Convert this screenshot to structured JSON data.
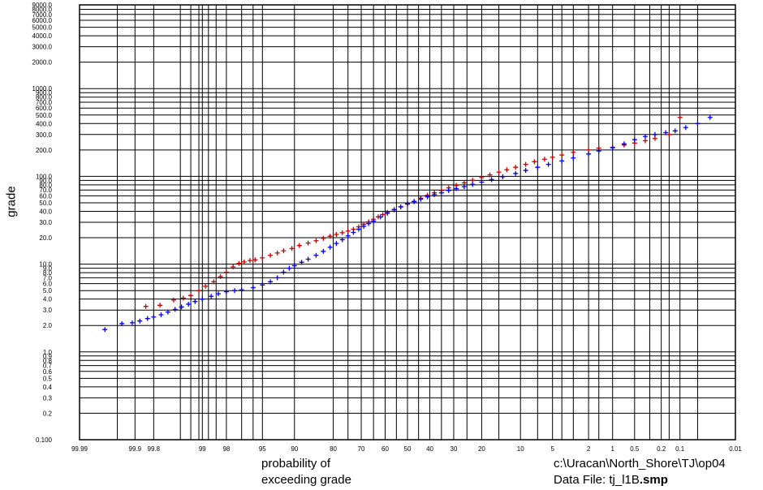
{
  "chart_data": {
    "type": "scatter",
    "xlabel_lines": [
      "probability of",
      "exceeding grade"
    ],
    "ylabel": "grade",
    "x_axis_scale": "normal probability (percent exceeding)",
    "y_axis_scale": "log",
    "x_ticks": [
      {
        "v": 99.99,
        "label": "99.99"
      },
      {
        "v": 99.9,
        "label": "99.9"
      },
      {
        "v": 99.8,
        "label": "99.8"
      },
      {
        "v": 99,
        "label": "99"
      },
      {
        "v": 98,
        "label": "98"
      },
      {
        "v": 95,
        "label": "95"
      },
      {
        "v": 90,
        "label": "90"
      },
      {
        "v": 80,
        "label": "80"
      },
      {
        "v": 70,
        "label": "70"
      },
      {
        "v": 60,
        "label": "60"
      },
      {
        "v": 50,
        "label": "50"
      },
      {
        "v": 40,
        "label": "40"
      },
      {
        "v": 30,
        "label": "30"
      },
      {
        "v": 20,
        "label": "20"
      },
      {
        "v": 10,
        "label": "10"
      },
      {
        "v": 5,
        "label": "5"
      },
      {
        "v": 2,
        "label": "2"
      },
      {
        "v": 1,
        "label": "1"
      },
      {
        "v": 0.5,
        "label": "0.5"
      },
      {
        "v": 0.2,
        "label": "0.2"
      },
      {
        "v": 0.1,
        "label": "0.1"
      },
      {
        "v": 0.01,
        "label": "0.01"
      }
    ],
    "x_minor_grid": [
      99.95,
      99.5,
      99.3,
      99.1,
      98.8,
      98.5,
      97,
      96,
      75,
      65,
      55,
      45,
      35,
      25,
      15,
      7,
      4,
      3,
      1.5,
      0.3,
      0.15,
      0.05
    ],
    "y_ticks": [
      {
        "v": 0.1,
        "label": "0.100"
      },
      {
        "v": 0.2,
        "label": "0.2"
      },
      {
        "v": 0.3,
        "label": "0.3"
      },
      {
        "v": 0.4,
        "label": "0.4"
      },
      {
        "v": 0.5,
        "label": "0.5"
      },
      {
        "v": 0.6,
        "label": "0.6"
      },
      {
        "v": 0.7,
        "label": "0.7"
      },
      {
        "v": 0.8,
        "label": "0.8"
      },
      {
        "v": 0.9,
        "label": "0.9"
      },
      {
        "v": 1,
        "label": "1.0"
      },
      {
        "v": 2,
        "label": "2.0"
      },
      {
        "v": 3,
        "label": "3.0"
      },
      {
        "v": 4,
        "label": "4.0"
      },
      {
        "v": 5,
        "label": "5.0"
      },
      {
        "v": 6,
        "label": "6.0"
      },
      {
        "v": 7,
        "label": "7.0"
      },
      {
        "v": 8,
        "label": "8.0"
      },
      {
        "v": 9,
        "label": "9.0"
      },
      {
        "v": 10,
        "label": "10.0"
      },
      {
        "v": 20,
        "label": "20.0"
      },
      {
        "v": 30,
        "label": "30.0"
      },
      {
        "v": 40,
        "label": "40.0"
      },
      {
        "v": 50,
        "label": "50.0"
      },
      {
        "v": 60,
        "label": "60.0"
      },
      {
        "v": 70,
        "label": "70.0"
      },
      {
        "v": 80,
        "label": "80.0"
      },
      {
        "v": 90,
        "label": "90.0"
      },
      {
        "v": 100,
        "label": "100.0"
      },
      {
        "v": 200,
        "label": "200.0"
      },
      {
        "v": 300,
        "label": "300.0"
      },
      {
        "v": 400,
        "label": "400.0"
      },
      {
        "v": 500,
        "label": "500.0"
      },
      {
        "v": 600,
        "label": "600.0"
      },
      {
        "v": 700,
        "label": "700.0"
      },
      {
        "v": 800,
        "label": "800.0"
      },
      {
        "v": 900,
        "label": "900.0"
      },
      {
        "v": 1000,
        "label": "1000.0"
      },
      {
        "v": 2000,
        "label": "2000.0"
      },
      {
        "v": 3000,
        "label": "3000.0"
      },
      {
        "v": 4000,
        "label": "4000.0"
      },
      {
        "v": 5000,
        "label": "5000.0"
      },
      {
        "v": 6000,
        "label": "6000.0"
      },
      {
        "v": 7000,
        "label": "7000.0"
      },
      {
        "v": 8000,
        "label": "8000.0"
      },
      {
        "v": 9000,
        "label": "9000.0"
      }
    ],
    "ylim": [
      0.1,
      9000
    ],
    "xlim_percent_exceeding": [
      99.99,
      0.01
    ],
    "grid": true,
    "marker": "+",
    "series": [
      {
        "color": "#cc0000",
        "points": [
          [
            99.85,
            3.3
          ],
          [
            99.75,
            3.4
          ],
          [
            99.6,
            3.9
          ],
          [
            99.45,
            4.1
          ],
          [
            99.3,
            4.4
          ],
          [
            99.1,
            5.0
          ],
          [
            98.9,
            5.6
          ],
          [
            98.6,
            6.3
          ],
          [
            98.3,
            7.2
          ],
          [
            98.0,
            8.1
          ],
          [
            97.6,
            9.3
          ],
          [
            97.2,
            10.2
          ],
          [
            96.8,
            10.6
          ],
          [
            96.3,
            11.0
          ],
          [
            95.8,
            11.2
          ],
          [
            95.0,
            11.8
          ],
          [
            94.0,
            12.6
          ],
          [
            93.0,
            13.4
          ],
          [
            92.0,
            14.2
          ],
          [
            90.5,
            15.1
          ],
          [
            89.0,
            16.3
          ],
          [
            87.0,
            17.4
          ],
          [
            85.0,
            18.5
          ],
          [
            83.0,
            19.7
          ],
          [
            81.0,
            20.8
          ],
          [
            79.0,
            21.8
          ],
          [
            77.0,
            22.8
          ],
          [
            75.0,
            23.8
          ],
          [
            73.0,
            25.0
          ],
          [
            71.0,
            26.6
          ],
          [
            69.0,
            28.5
          ],
          [
            67.0,
            30.4
          ],
          [
            65.0,
            32.5
          ],
          [
            63.0,
            34.6
          ],
          [
            61.0,
            36.8
          ],
          [
            59.0,
            38.8
          ],
          [
            56.0,
            42.0
          ],
          [
            53.0,
            45.0
          ],
          [
            50.0,
            48.5
          ],
          [
            47.0,
            52.0
          ],
          [
            44.0,
            56.5
          ],
          [
            41.0,
            61.0
          ],
          [
            38.0,
            65.0
          ],
          [
            35.0,
            69.0
          ],
          [
            32.0,
            74.0
          ],
          [
            29.0,
            79.0
          ],
          [
            26.0,
            84.5
          ],
          [
            23.0,
            90.5
          ],
          [
            20.0,
            97.0
          ],
          [
            17.5,
            104.0
          ],
          [
            15.0,
            112.0
          ],
          [
            13.0,
            119.0
          ],
          [
            11.0,
            127.0
          ],
          [
            9.0,
            137.0
          ],
          [
            7.5,
            147.0
          ],
          [
            6.0,
            157.0
          ],
          [
            5.0,
            165.0
          ],
          [
            4.0,
            175.0
          ],
          [
            3.0,
            188.0
          ],
          [
            2.0,
            200.0
          ],
          [
            1.5,
            210.0
          ],
          [
            1.0,
            215.0
          ],
          [
            0.7,
            228.0
          ],
          [
            0.5,
            240.0
          ],
          [
            0.35,
            255.0
          ],
          [
            0.25,
            270.0
          ],
          [
            0.15,
            300.0
          ],
          [
            0.1,
            470.0
          ]
        ]
      },
      {
        "color": "#0000ee",
        "points": [
          [
            99.97,
            1.8
          ],
          [
            99.94,
            2.1
          ],
          [
            99.91,
            2.15
          ],
          [
            99.88,
            2.25
          ],
          [
            99.84,
            2.4
          ],
          [
            99.8,
            2.5
          ],
          [
            99.74,
            2.65
          ],
          [
            99.67,
            2.85
          ],
          [
            99.58,
            3.05
          ],
          [
            99.48,
            3.25
          ],
          [
            99.35,
            3.5
          ],
          [
            99.2,
            3.75
          ],
          [
            99.0,
            4.0
          ],
          [
            98.7,
            4.3
          ],
          [
            98.4,
            4.6
          ],
          [
            98.0,
            4.85
          ],
          [
            97.5,
            5.0
          ],
          [
            97.0,
            5.1
          ],
          [
            96.0,
            5.4
          ],
          [
            95.0,
            5.8
          ],
          [
            94.0,
            6.3
          ],
          [
            93.0,
            7.0
          ],
          [
            92.0,
            8.1
          ],
          [
            91.0,
            9.0
          ],
          [
            90.0,
            9.6
          ],
          [
            88.5,
            10.5
          ],
          [
            87.0,
            11.4
          ],
          [
            85.0,
            12.6
          ],
          [
            83.0,
            14.0
          ],
          [
            81.0,
            15.6
          ],
          [
            79.0,
            17.2
          ],
          [
            77.0,
            19.0
          ],
          [
            75.0,
            21.0
          ],
          [
            73.0,
            23.0
          ],
          [
            71.0,
            25.0
          ],
          [
            69.0,
            27.0
          ],
          [
            67.0,
            29.0
          ],
          [
            65.0,
            31.0
          ],
          [
            62.0,
            34.5
          ],
          [
            59.0,
            38.0
          ],
          [
            56.0,
            41.5
          ],
          [
            53.0,
            45.0
          ],
          [
            50.0,
            48.5
          ],
          [
            47.0,
            51.5
          ],
          [
            44.0,
            55.0
          ],
          [
            41.0,
            58.5
          ],
          [
            38.0,
            62.0
          ],
          [
            35.0,
            65.0
          ],
          [
            32.0,
            69.0
          ],
          [
            29.0,
            72.5
          ],
          [
            26.0,
            76.5
          ],
          [
            23.0,
            81.0
          ],
          [
            20.0,
            86.0
          ],
          [
            17.0,
            92.0
          ],
          [
            14.0,
            99.0
          ],
          [
            11.0,
            108.0
          ],
          [
            9.0,
            117.0
          ],
          [
            7.0,
            127.0
          ],
          [
            5.5,
            137.0
          ],
          [
            4.0,
            150.0
          ],
          [
            3.0,
            162.0
          ],
          [
            2.0,
            180.0
          ],
          [
            1.5,
            195.0
          ],
          [
            1.0,
            212.0
          ],
          [
            0.7,
            235.0
          ],
          [
            0.5,
            262.0
          ],
          [
            0.35,
            285.0
          ],
          [
            0.25,
            300.0
          ],
          [
            0.17,
            315.0
          ],
          [
            0.12,
            330.0
          ],
          [
            0.08,
            360.0
          ],
          [
            0.05,
            400.0
          ],
          [
            0.03,
            470.0
          ]
        ]
      }
    ]
  },
  "footer": {
    "path": "c:\\Uracan\\North_Shore\\TJ\\op04",
    "data_file_label": "Data File: tj_l1B",
    "data_file_ext": ".smp"
  }
}
